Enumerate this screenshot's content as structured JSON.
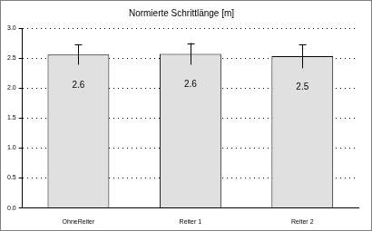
{
  "chart_data": {
    "type": "bar",
    "title": "Normierte Schrittlänge [m]",
    "categories": [
      "OhneReiter",
      "Reiter 1",
      "Reiter 2"
    ],
    "values": [
      2.56,
      2.57,
      2.53
    ],
    "value_labels": [
      "2.6",
      "2.6",
      "2.5"
    ],
    "errors": [
      0.17,
      0.18,
      0.2
    ],
    "color": "#e0e0e0",
    "ylim": [
      0,
      3
    ],
    "yticks": [
      {
        "value": 0,
        "label": "0.0"
      },
      {
        "value": 0.5,
        "label": "0.5"
      },
      {
        "value": 1,
        "label": "1.0"
      },
      {
        "value": 1.5,
        "label": "1.5"
      },
      {
        "value": 2,
        "label": "2.0"
      },
      {
        "value": 2.5,
        "label": "2.5"
      },
      {
        "value": 3,
        "label": "3.0"
      }
    ],
    "grid": true,
    "data_labels": true
  }
}
